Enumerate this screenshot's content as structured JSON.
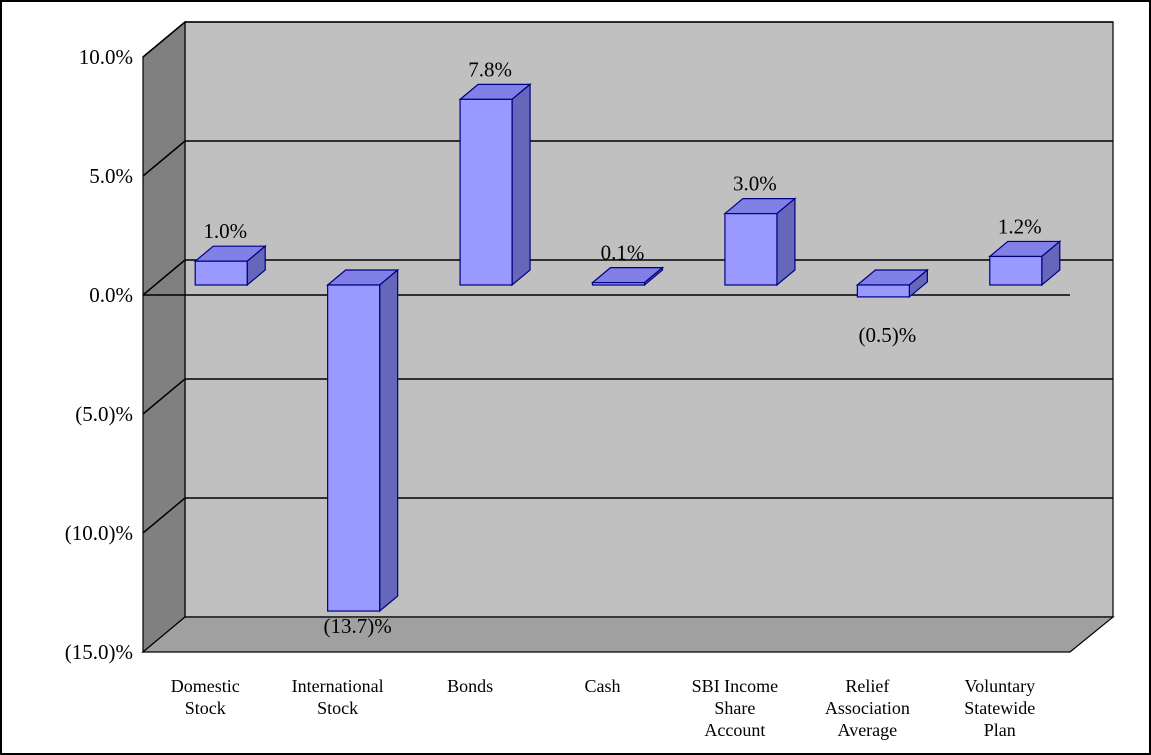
{
  "chart_data": {
    "type": "bar",
    "categories": [
      [
        "Domestic",
        "Stock"
      ],
      [
        "International",
        "Stock"
      ],
      [
        "Bonds"
      ],
      [
        "Cash"
      ],
      [
        "SBI Income",
        "Share",
        "Account"
      ],
      [
        "Relief",
        "Association",
        "Average"
      ],
      [
        "Voluntary",
        "Statewide",
        "Plan"
      ]
    ],
    "values": [
      1.0,
      -13.7,
      7.8,
      0.1,
      3.0,
      -0.5,
      1.2
    ],
    "value_labels": [
      "1.0%",
      "(13.7)%",
      "7.8%",
      "0.1%",
      "3.0%",
      "(0.5)%",
      "1.2%"
    ],
    "y_ticks": [
      10,
      5,
      0,
      -5,
      -10,
      -15
    ],
    "y_tick_labels": [
      "10.0%",
      "5.0%",
      "0.0%",
      "(5.0)%",
      "(10.0)%",
      "(15.0)%"
    ],
    "ylim": [
      -15,
      10
    ],
    "title": "",
    "xlabel": "",
    "ylabel": "",
    "grid": true,
    "legend": "none",
    "style": "3d",
    "colors": {
      "bar_front": "#9999ff",
      "bar_side": "#6666bb",
      "bar_top": "#8080e6",
      "bar_stroke": "#000080",
      "wall": "#c0c0c0",
      "side_wall": "#808080",
      "floor": "#a0a0a0"
    }
  }
}
